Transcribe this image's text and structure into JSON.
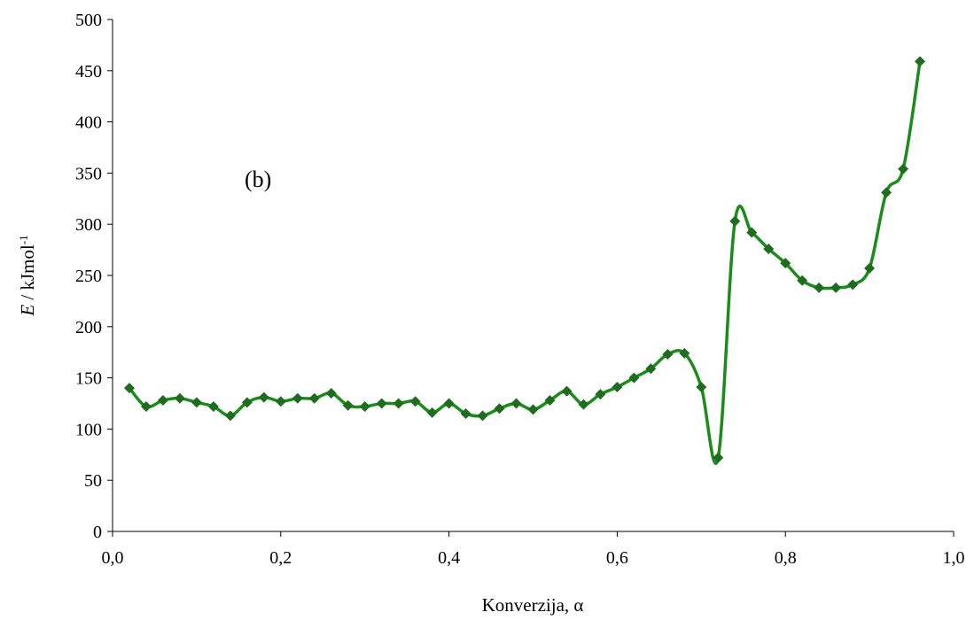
{
  "chart_data": {
    "type": "line",
    "title": "",
    "xlabel": "Konverzija, α",
    "ylabel_italic": "E",
    "ylabel_rest": " / kJmol",
    "ylabel_sup": "-1",
    "annotation": "(b)",
    "xlim": [
      0,
      1
    ],
    "ylim": [
      0,
      500
    ],
    "x_ticks": [
      0,
      0.2,
      0.4,
      0.6,
      0.8,
      1.0
    ],
    "x_tick_labels": [
      "0,0",
      "0,2",
      "0,4",
      "0,6",
      "0,8",
      "1,0"
    ],
    "y_ticks": [
      0,
      50,
      100,
      150,
      200,
      250,
      300,
      350,
      400,
      450,
      500
    ],
    "y_tick_labels": [
      "0",
      "50",
      "100",
      "150",
      "200",
      "250",
      "300",
      "350",
      "400",
      "450",
      "500"
    ],
    "grid": false,
    "series": [
      {
        "color": "#1a8c1a",
        "marker_color": "#1f6b1f",
        "marker": "diamond",
        "x": [
          0.02,
          0.04,
          0.06,
          0.08,
          0.1,
          0.12,
          0.14,
          0.16,
          0.18,
          0.2,
          0.22,
          0.24,
          0.26,
          0.28,
          0.3,
          0.32,
          0.34,
          0.36,
          0.38,
          0.4,
          0.42,
          0.44,
          0.46,
          0.48,
          0.5,
          0.52,
          0.54,
          0.56,
          0.58,
          0.6,
          0.62,
          0.64,
          0.66,
          0.68,
          0.7,
          0.72,
          0.74,
          0.76,
          0.78,
          0.8,
          0.82,
          0.84,
          0.86,
          0.88,
          0.9,
          0.92,
          0.94,
          0.96
        ],
        "y": [
          140,
          122,
          128,
          130,
          126,
          122,
          113,
          126,
          131,
          127,
          130,
          130,
          135,
          123,
          122,
          125,
          125,
          127,
          116,
          125,
          115,
          113,
          120,
          125,
          119,
          128,
          137,
          124,
          134,
          141,
          150,
          159,
          173,
          174,
          141,
          72,
          303,
          292,
          276,
          262,
          245,
          238,
          238,
          241,
          257,
          331,
          354,
          459
        ]
      }
    ]
  }
}
